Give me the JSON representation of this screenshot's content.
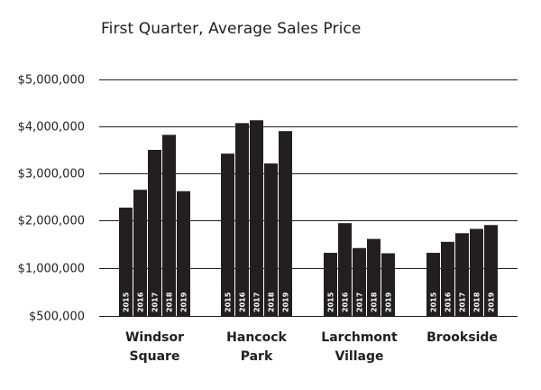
{
  "chart_data": {
    "type": "bar",
    "title": "First Quarter, Average Sales Price",
    "xlabel": "",
    "ylabel": "",
    "ylim": [
      500000,
      5000000
    ],
    "yticks": [
      500000,
      1000000,
      2000000,
      3000000,
      4000000,
      5000000
    ],
    "ytick_labels": [
      "$500,000",
      "$1,000,000",
      "$2,000,000",
      "$3,000,000",
      "$4,000,000",
      "$5,000,000"
    ],
    "grid": true,
    "legend": "none",
    "bar_color": "#231f20",
    "grid_color": "#231f20",
    "text_color": "#1f1f1f",
    "label_color": "#ffffff",
    "categories": [
      {
        "name_lines": [
          "Windsor",
          "Square"
        ],
        "bars": [
          {
            "year": "2015",
            "value": 2270000
          },
          {
            "year": "2016",
            "value": 2650000
          },
          {
            "year": "2017",
            "value": 3500000
          },
          {
            "year": "2018",
            "value": 3820000
          },
          {
            "year": "2019",
            "value": 2620000
          }
        ]
      },
      {
        "name_lines": [
          "Hancock",
          "Park"
        ],
        "bars": [
          {
            "year": "2015",
            "value": 3420000
          },
          {
            "year": "2016",
            "value": 4070000
          },
          {
            "year": "2017",
            "value": 4130000
          },
          {
            "year": "2018",
            "value": 3210000
          },
          {
            "year": "2019",
            "value": 3900000
          }
        ]
      },
      {
        "name_lines": [
          "Larchmont",
          "Village"
        ],
        "bars": [
          {
            "year": "2015",
            "value": 1320000
          },
          {
            "year": "2016",
            "value": 1940000
          },
          {
            "year": "2017",
            "value": 1420000
          },
          {
            "year": "2018",
            "value": 1610000
          },
          {
            "year": "2019",
            "value": 1310000
          }
        ]
      },
      {
        "name_lines": [
          "Brookside"
        ],
        "bars": [
          {
            "year": "2015",
            "value": 1320000
          },
          {
            "year": "2016",
            "value": 1550000
          },
          {
            "year": "2017",
            "value": 1730000
          },
          {
            "year": "2018",
            "value": 1820000
          },
          {
            "year": "2019",
            "value": 1900000
          }
        ]
      }
    ]
  }
}
